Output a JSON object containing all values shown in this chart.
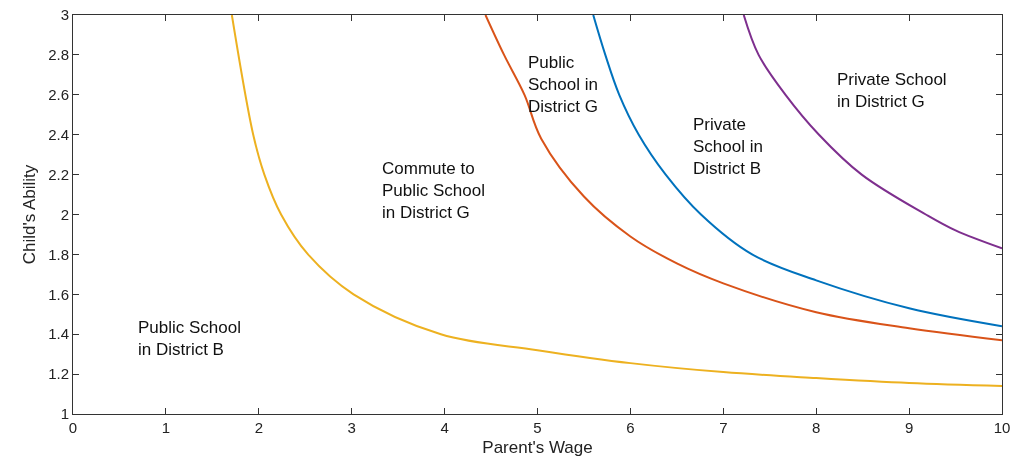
{
  "chart_data": {
    "type": "line",
    "xlabel": "Parent's Wage",
    "ylabel": "Child's Ability",
    "xlim": [
      0,
      10
    ],
    "xticks": [
      0,
      1,
      2,
      3,
      4,
      5,
      6,
      7,
      8,
      9,
      10
    ],
    "ylim": [
      1,
      3
    ],
    "yticks": [
      1,
      1.2,
      1.4,
      1.6,
      1.8,
      2,
      2.2,
      2.4,
      2.6,
      2.8,
      3
    ],
    "grid": false,
    "marker": "none",
    "line_style": "solid",
    "series": [
      {
        "color": "#edb120",
        "x": [
          1.71,
          1.94,
          2.06,
          2.24,
          2.53,
          3.02,
          3.96,
          5,
          6,
          7,
          8,
          9,
          10
        ],
        "values": [
          3,
          2.4,
          2.2,
          2,
          1.8,
          1.6,
          1.4,
          1.32,
          1.255,
          1.21,
          1.18,
          1.155,
          1.14
        ]
      },
      {
        "color": "#d95319",
        "x": [
          4.44,
          4.64,
          4.86,
          5.04,
          5.5,
          6,
          6.5,
          7,
          8,
          9,
          10
        ],
        "values": [
          3,
          2.8,
          2.6,
          2.38,
          2.09,
          1.89,
          1.755,
          1.655,
          1.51,
          1.43,
          1.37
        ]
      },
      {
        "color": "#0072bd",
        "x": [
          5.6,
          5.73,
          5.88,
          6.09,
          6.38,
          6.76,
          7.31,
          8,
          9,
          10
        ],
        "values": [
          3,
          2.8,
          2.6,
          2.4,
          2.2,
          2,
          1.8,
          1.67,
          1.53,
          1.44
        ]
      },
      {
        "color": "#7e2f8e",
        "x": [
          7.22,
          7.38,
          7.67,
          8.03,
          8.49,
          9.18,
          9.5,
          10
        ],
        "values": [
          3,
          2.8,
          2.6,
          2.4,
          2.2,
          2,
          1.92,
          1.83
        ]
      }
    ],
    "annotations": [
      "Public School\nin District B",
      "Commute to\nPublic School\nin District G",
      "Public\nSchool in\nDistrict G",
      "Private\nSchool in\nDistrict B",
      "Private School\nin District G"
    ]
  }
}
